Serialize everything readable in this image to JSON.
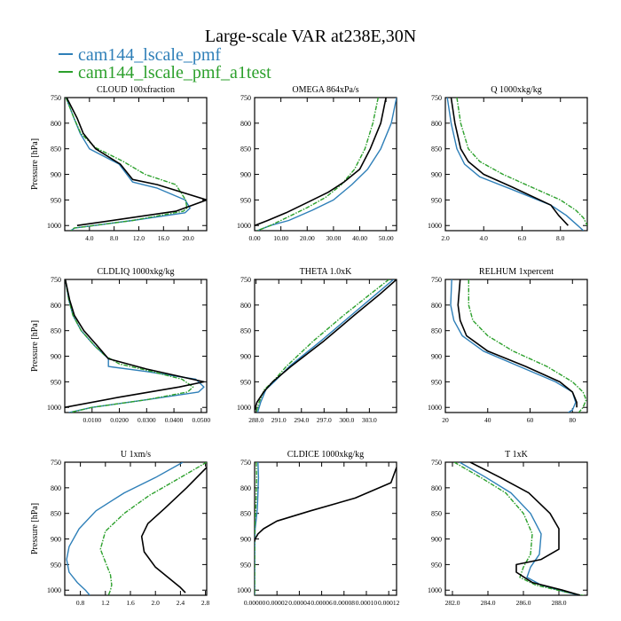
{
  "figure": {
    "title": "Large-scale VAR at238E,30N",
    "legend": [
      {
        "name": "cam144_lscale_pmf",
        "color": "#2e7fb8"
      },
      {
        "name": "cam144_lscale_pmf_a1test",
        "color": "#2ca02c"
      }
    ]
  },
  "chart_data": [
    {
      "type": "line",
      "title": "CLOUD  100xfraction",
      "ylabel": "Pressure [hPa]",
      "xlim": [
        0,
        23
      ],
      "ylim": [
        1010,
        750
      ],
      "xticks": [
        4,
        8,
        12,
        16,
        20
      ],
      "xtick_labels": [
        "4.0",
        "8.0",
        "12.0",
        "16.0",
        "20.0"
      ],
      "yticks": [
        750,
        800,
        850,
        900,
        950,
        1000
      ],
      "series": [
        {
          "color": "#2e7fb8",
          "x": [
            0.2,
            1.5,
            2.5,
            4,
            8.8,
            11,
            15,
            19.5,
            20.3,
            19.5,
            11,
            1.6,
            1.0
          ],
          "y": [
            750,
            790,
            820,
            850,
            880,
            915,
            927,
            950,
            966,
            975,
            990,
            1005,
            1010
          ]
        },
        {
          "color": "#2ca02c",
          "x": [
            0.2,
            1.5,
            2.6,
            5,
            9.5,
            13,
            18,
            19.6,
            19.8,
            19.2,
            11,
            1.5,
            1.0
          ],
          "y": [
            750,
            790,
            820,
            848,
            875,
            900,
            920,
            950,
            966,
            972,
            990,
            1005,
            1010
          ]
        },
        {
          "color": "#000000",
          "x": [
            0.3,
            2.0,
            3.0,
            5,
            9,
            11,
            15,
            23,
            18,
            2.0
          ],
          "y": [
            750,
            790,
            820,
            850,
            880,
            910,
            920,
            950,
            972,
            1000
          ]
        }
      ]
    },
    {
      "type": "line",
      "title": "OMEGA  864xPa/s",
      "ylabel": "",
      "xlim": [
        0,
        54
      ],
      "ylim": [
        1010,
        750
      ],
      "xticks": [
        0,
        10,
        20,
        30,
        40,
        50
      ],
      "xtick_labels": [
        "0.00",
        "10.00",
        "20.00",
        "30.00",
        "40.00",
        "50.00"
      ],
      "yticks": [
        750,
        800,
        850,
        900,
        950,
        1000
      ],
      "series": [
        {
          "color": "#2e7fb8",
          "x": [
            54,
            52,
            48,
            43,
            37,
            30,
            22,
            13,
            6,
            1
          ],
          "y": [
            750,
            800,
            850,
            890,
            920,
            950,
            970,
            990,
            1000,
            1010
          ]
        },
        {
          "color": "#2ca02c",
          "x": [
            47,
            45,
            42,
            38,
            33,
            27,
            20,
            12,
            6,
            1
          ],
          "y": [
            750,
            800,
            850,
            890,
            920,
            945,
            965,
            985,
            1000,
            1010
          ]
        },
        {
          "color": "#000000",
          "x": [
            50,
            48,
            44,
            40,
            34,
            28,
            20,
            12,
            5,
            0
          ],
          "y": [
            750,
            800,
            850,
            890,
            915,
            935,
            955,
            975,
            990,
            1000
          ]
        }
      ]
    },
    {
      "type": "line",
      "title": "Q  1000xkg/kg",
      "ylabel": "",
      "xlim": [
        2,
        9.4
      ],
      "ylim": [
        1010,
        750
      ],
      "xticks": [
        2,
        4,
        6,
        8
      ],
      "xtick_labels": [
        "2.0",
        "4.0",
        "6.0",
        "8.0"
      ],
      "yticks": [
        750,
        800,
        850,
        900,
        950,
        1000
      ],
      "series": [
        {
          "color": "#2e7fb8",
          "x": [
            2.1,
            2.3,
            2.6,
            3.0,
            3.8,
            5.5,
            7.5,
            8.3,
            8.9,
            9.2
          ],
          "y": [
            750,
            800,
            850,
            880,
            905,
            930,
            960,
            980,
            1000,
            1010
          ]
        },
        {
          "color": "#2ca02c",
          "x": [
            2.6,
            2.8,
            3.2,
            3.8,
            5.0,
            6.5,
            8.0,
            8.8,
            9.2,
            9.4
          ],
          "y": [
            750,
            800,
            850,
            875,
            900,
            925,
            950,
            970,
            985,
            1000
          ]
        },
        {
          "color": "#000000",
          "x": [
            2.3,
            2.5,
            2.8,
            3.2,
            4.0,
            5.5,
            7.5,
            7.9,
            8.4
          ],
          "y": [
            750,
            800,
            850,
            875,
            900,
            925,
            960,
            980,
            1000
          ]
        }
      ]
    },
    {
      "type": "line",
      "title": "CLDLIQ  1000xkg/kg",
      "ylabel": "Pressure [hPa]",
      "xlim": [
        0,
        0.052
      ],
      "ylim": [
        1010,
        750
      ],
      "xticks": [
        0.01,
        0.02,
        0.03,
        0.04,
        0.05
      ],
      "xtick_labels": [
        "0.0100",
        "0.0200",
        "0.0300",
        "0.0400",
        "0.0500"
      ],
      "yticks": [
        750,
        800,
        850,
        900,
        950,
        1000
      ],
      "series": [
        {
          "color": "#2e7fb8",
          "x": [
            0.0002,
            0.0015,
            0.003,
            0.006,
            0.011,
            0.016,
            0.016,
            0.03,
            0.048,
            0.051,
            0.049,
            0.03,
            0.01,
            0.0015
          ],
          "y": [
            750,
            790,
            820,
            850,
            880,
            905,
            920,
            930,
            945,
            960,
            970,
            985,
            1000,
            1010
          ]
        },
        {
          "color": "#2ca02c",
          "x": [
            0.0002,
            0.0015,
            0.003,
            0.006,
            0.011,
            0.015,
            0.02,
            0.032,
            0.043,
            0.047,
            0.045,
            0.03,
            0.01,
            0.002
          ],
          "y": [
            750,
            790,
            820,
            850,
            880,
            900,
            915,
            930,
            945,
            960,
            970,
            985,
            1000,
            1010
          ]
        },
        {
          "color": "#000000",
          "x": [
            0.0002,
            0.0018,
            0.0035,
            0.007,
            0.012,
            0.016,
            0.03,
            0.051,
            0.042,
            0.02,
            0.0
          ],
          "y": [
            750,
            790,
            820,
            850,
            880,
            905,
            925,
            950,
            960,
            980,
            1000
          ]
        }
      ]
    },
    {
      "type": "line",
      "title": "THETA  1.0xK",
      "ylabel": "",
      "xlim": [
        287.8,
        306.6
      ],
      "ylim": [
        1010,
        750
      ],
      "xticks": [
        288,
        291,
        294,
        297,
        300,
        303
      ],
      "xtick_labels": [
        "288.0",
        "291.0",
        "294.0",
        "297.0",
        "300.0",
        "303.0"
      ],
      "yticks": [
        750,
        800,
        850,
        900,
        950,
        1000
      ],
      "series": [
        {
          "color": "#2e7fb8",
          "x": [
            306.2,
            303.8,
            300.6,
            296.6,
            292.4,
            290.4,
            289.3,
            288.6,
            288.2
          ],
          "y": [
            750,
            780,
            820,
            870,
            920,
            950,
            965,
            990,
            1010
          ]
        },
        {
          "color": "#2ca02c",
          "x": [
            305.6,
            303.0,
            299.6,
            295.6,
            292.0,
            290.2,
            289.1,
            288.4,
            288.0
          ],
          "y": [
            750,
            780,
            820,
            870,
            920,
            950,
            965,
            990,
            1010
          ]
        },
        {
          "color": "#000000",
          "x": [
            306.6,
            304.3,
            301.0,
            297.0,
            292.6,
            290.2,
            289.0,
            288.1,
            287.8
          ],
          "y": [
            750,
            780,
            820,
            870,
            920,
            950,
            970,
            990,
            1005
          ]
        }
      ]
    },
    {
      "type": "line",
      "title": "RELHUM  1xpercent",
      "ylabel": "",
      "xlim": [
        20,
        87
      ],
      "ylim": [
        1010,
        750
      ],
      "xticks": [
        20,
        40,
        60,
        80
      ],
      "xtick_labels": [
        "20",
        "40",
        "60",
        "80"
      ],
      "yticks": [
        750,
        800,
        850,
        900,
        950,
        1000
      ],
      "series": [
        {
          "color": "#2e7fb8",
          "x": [
            23,
            22.5,
            24,
            28,
            38,
            55,
            72,
            80,
            81.5,
            80,
            78
          ],
          "y": [
            750,
            800,
            830,
            860,
            890,
            920,
            950,
            970,
            990,
            1005,
            1010
          ]
        },
        {
          "color": "#2ca02c",
          "x": [
            31,
            31,
            33,
            40,
            52,
            68,
            80,
            85,
            86.5,
            85,
            83
          ],
          "y": [
            750,
            800,
            830,
            860,
            890,
            920,
            950,
            970,
            985,
            1000,
            1010
          ]
        },
        {
          "color": "#000000",
          "x": [
            27,
            26,
            27,
            30,
            40,
            58,
            74,
            80,
            82,
            82
          ],
          "y": [
            750,
            800,
            830,
            860,
            890,
            920,
            950,
            970,
            990,
            1000
          ]
        }
      ]
    },
    {
      "type": "line",
      "title": "U  1xm/s",
      "ylabel": "Pressure [hPa]",
      "xlim": [
        0.55,
        2.82
      ],
      "ylim": [
        1010,
        750
      ],
      "xticks": [
        0.8,
        1.2,
        1.6,
        2.0,
        2.4,
        2.8
      ],
      "xtick_labels": [
        "0.8",
        "1.2",
        "1.6",
        "2.0",
        "2.4",
        "2.8"
      ],
      "yticks": [
        750,
        800,
        850,
        900,
        950,
        1000
      ],
      "series": [
        {
          "color": "#2e7fb8",
          "x": [
            2.44,
            2.0,
            1.5,
            1.05,
            0.78,
            0.62,
            0.58,
            0.62,
            0.75,
            0.88,
            0.95
          ],
          "y": [
            750,
            780,
            810,
            845,
            880,
            915,
            940,
            965,
            985,
            1000,
            1010
          ]
        },
        {
          "color": "#2ca02c",
          "x": [
            2.82,
            2.4,
            1.9,
            1.5,
            1.2,
            1.12,
            1.2,
            1.28,
            1.3,
            1.28,
            1.25
          ],
          "y": [
            750,
            780,
            815,
            850,
            885,
            920,
            945,
            970,
            990,
            1000,
            1010
          ]
        },
        {
          "color": "#000000",
          "x": [
            2.82,
            2.5,
            2.15,
            1.88,
            1.78,
            1.82,
            2.0,
            2.2,
            2.4,
            2.48
          ],
          "y": [
            760,
            800,
            840,
            870,
            895,
            925,
            955,
            975,
            995,
            1005
          ]
        }
      ]
    },
    {
      "type": "line",
      "title": "CLDICE  1000xkg/kg",
      "ylabel": "",
      "xlim": [
        0,
        0.000127
      ],
      "ylim": [
        1010,
        750
      ],
      "xticks": [
        0,
        2e-05,
        4e-05,
        6e-05,
        8e-05,
        0.0001,
        0.00012
      ],
      "xtick_labels": [
        "0.00000",
        "0.00002",
        "0.00004",
        "0.00006",
        "0.00008",
        "0.00010",
        "0.00012"
      ],
      "yticks": [
        750,
        800,
        850,
        900,
        950,
        1000
      ],
      "series": [
        {
          "color": "#2e7fb8",
          "x": [
            3e-06,
            3.5e-06,
            3e-06,
            2.5e-06,
            1.5e-06,
            5e-07,
            2e-07,
            1e-07,
            0.0
          ],
          "y": [
            750,
            780,
            810,
            840,
            860,
            880,
            900,
            950,
            1010
          ]
        },
        {
          "color": "#2ca02c",
          "x": [
            1.5e-06,
            1.8e-06,
            1.5e-06,
            1e-06,
            5e-07,
            2e-07,
            1e-07,
            0.0
          ],
          "y": [
            750,
            780,
            810,
            840,
            860,
            880,
            900,
            1010
          ]
        },
        {
          "color": "#000000",
          "x": [
            0.000127,
            0.000122,
            9e-05,
            5e-05,
            2e-05,
            8e-06,
            3e-06,
            5e-07,
            0.0
          ],
          "y": [
            760,
            790,
            820,
            845,
            865,
            880,
            890,
            900,
            905
          ]
        }
      ]
    },
    {
      "type": "line",
      "title": "T  1xK",
      "ylabel": "",
      "xlim": [
        281.6,
        289.6
      ],
      "ylim": [
        1010,
        750
      ],
      "xticks": [
        282,
        284,
        286,
        288
      ],
      "xtick_labels": [
        "282.0",
        "284.0",
        "286.0",
        "288.0"
      ],
      "yticks": [
        750,
        800,
        850,
        900,
        950,
        1000
      ],
      "series": [
        {
          "color": "#2e7fb8",
          "x": [
            282.4,
            283.9,
            285.3,
            286.4,
            287.0,
            286.9,
            286.4,
            286.2,
            287.0,
            288.3,
            289.4
          ],
          "y": [
            750,
            780,
            810,
            850,
            890,
            930,
            955,
            975,
            990,
            1003,
            1012
          ]
        },
        {
          "color": "#2ca02c",
          "x": [
            282.1,
            283.6,
            285.0,
            286.0,
            286.5,
            286.4,
            286.0,
            285.8,
            286.7,
            288.3,
            289.6
          ],
          "y": [
            750,
            780,
            810,
            850,
            890,
            930,
            955,
            975,
            990,
            1003,
            1012
          ]
        },
        {
          "color": "#000000",
          "x": [
            283.0,
            284.7,
            286.3,
            287.5,
            288.0,
            288.0,
            287.0,
            285.6,
            285.6,
            286.5,
            288.2,
            289.2
          ],
          "y": [
            750,
            780,
            810,
            850,
            880,
            920,
            940,
            950,
            965,
            985,
            1000,
            1010
          ]
        }
      ]
    }
  ]
}
